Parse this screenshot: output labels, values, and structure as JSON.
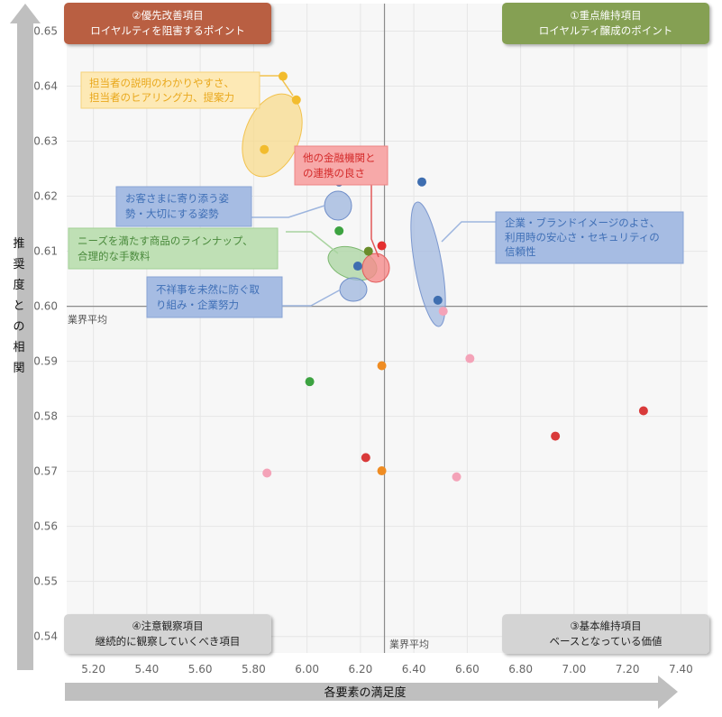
{
  "chart_data": {
    "type": "scatter",
    "xlabel": "各要素の満足度",
    "ylabel": "推奨度との相関",
    "xlim": [
      5.1,
      7.5
    ],
    "ylim": [
      0.537,
      0.655
    ],
    "x_ticks": [
      "5.20",
      "5.40",
      "5.60",
      "5.80",
      "6.00",
      "6.20",
      "6.40",
      "6.60",
      "6.80",
      "7.00",
      "7.20",
      "7.40"
    ],
    "y_ticks": [
      "0.54",
      "0.55",
      "0.56",
      "0.57",
      "0.58",
      "0.59",
      "0.60",
      "0.61",
      "0.62",
      "0.63",
      "0.64",
      "0.65"
    ],
    "grid": true,
    "average_x": 6.29,
    "average_y": 0.6,
    "average_label_x": "業界平均",
    "average_label_y": "業界平均",
    "points": [
      {
        "x": 5.91,
        "y": 0.6418,
        "color": "#f2bc2e"
      },
      {
        "x": 5.96,
        "y": 0.6375,
        "color": "#f2bc2e"
      },
      {
        "x": 5.84,
        "y": 0.6285,
        "color": "#f2bc2e"
      },
      {
        "x": 6.12,
        "y": 0.6226,
        "color": "#3e6eb0"
      },
      {
        "x": 6.12,
        "y": 0.6137,
        "color": "#3da341"
      },
      {
        "x": 6.23,
        "y": 0.61,
        "color": "#6a8c2a"
      },
      {
        "x": 6.28,
        "y": 0.611,
        "color": "#e42f2f"
      },
      {
        "x": 6.19,
        "y": 0.6073,
        "color": "#3e6eb0"
      },
      {
        "x": 6.43,
        "y": 0.6226,
        "color": "#3e6eb0"
      },
      {
        "x": 6.49,
        "y": 0.6011,
        "color": "#3e6eb0"
      },
      {
        "x": 6.51,
        "y": 0.5991,
        "color": "#f4a3b8"
      },
      {
        "x": 6.61,
        "y": 0.5905,
        "color": "#f4a3b8"
      },
      {
        "x": 6.28,
        "y": 0.5892,
        "color": "#ef8c22"
      },
      {
        "x": 6.01,
        "y": 0.5863,
        "color": "#3da341"
      },
      {
        "x": 7.26,
        "y": 0.581,
        "color": "#d93a3a"
      },
      {
        "x": 6.93,
        "y": 0.5764,
        "color": "#d93a3a"
      },
      {
        "x": 6.22,
        "y": 0.5725,
        "color": "#d93a3a"
      },
      {
        "x": 6.28,
        "y": 0.5701,
        "color": "#ef8c22"
      },
      {
        "x": 5.85,
        "y": 0.5697,
        "color": "#f4a3b8"
      },
      {
        "x": 6.56,
        "y": 0.569,
        "color": "#f4a3b8"
      }
    ]
  },
  "quadrants": {
    "top_left": {
      "line1": "②優先改善項目",
      "line2": "ロイヤルティを阻害するポイント",
      "color": "#b95f43"
    },
    "top_right": {
      "line1": "①重点維持項目",
      "line2": "ロイヤルティ醸成のポイント",
      "color": "#85a052"
    },
    "bottom_left": {
      "line1": "④注意観察項目",
      "line2": "継続的に観察していくべき項目",
      "color": "#d4d4d4"
    },
    "bottom_right": {
      "line1": "③基本維持項目",
      "line2": "ベースとなっている価値",
      "color": "#d4d4d4"
    }
  },
  "annotations": {
    "yellow": {
      "line1": "担当者の説明のわかりやすさ、",
      "line2": "担当者のヒアリング力、提案力",
      "color": "#e9a81c"
    },
    "red": {
      "line1": "他の金融機関と",
      "line2": "の連携の良さ",
      "color": "#d42a2a"
    },
    "blue_care": {
      "line1": "お客さまに寄り添う姿",
      "line2": "勢・大切にする姿勢",
      "color": "#3f6fb6"
    },
    "green_needs": {
      "line1": "ニーズを満たす商品のラインナップ、",
      "line2": "合理的な手数料",
      "color": "#4a8a3c"
    },
    "blue_fraud": {
      "line1": "不祥事を未然に防ぐ取",
      "line2": "り組み・企業努力",
      "color": "#3f6fb6"
    },
    "blue_brand": {
      "line1": "企業・ブランドイメージのよさ、",
      "line2": "利用時の安心さ・セキュリティの",
      "line3": "信頼性",
      "color": "#3f6fb6"
    }
  }
}
